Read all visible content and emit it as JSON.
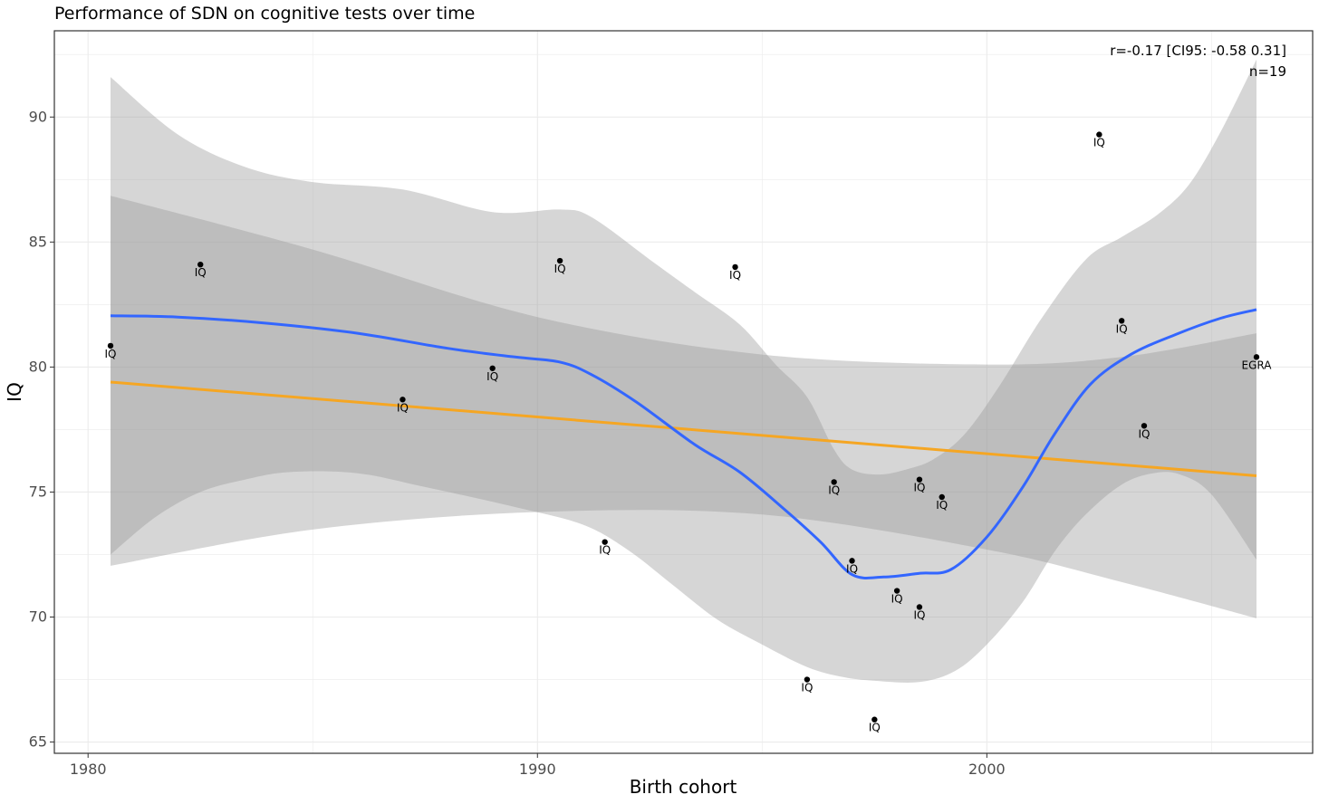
{
  "chart_data": {
    "type": "scatter",
    "title": "Performance of SDN on cognitive tests over time",
    "xlabel": "Birth cohort",
    "ylabel": "IQ",
    "xlim": [
      1979.25,
      2007.25
    ],
    "ylim": [
      64.55,
      93.45
    ],
    "x_ticks": [
      1980,
      1990,
      2000
    ],
    "y_ticks": [
      65,
      70,
      75,
      80,
      85,
      90
    ],
    "grid": true,
    "annotation": {
      "line1": "r=-0.17 [CI95: -0.58 0.31]",
      "line2": "n=19"
    },
    "points": [
      {
        "x": 1980.5,
        "y": 80.85,
        "label": "IQ"
      },
      {
        "x": 1982.5,
        "y": 84.1,
        "label": "IQ"
      },
      {
        "x": 1987.0,
        "y": 78.7,
        "label": "IQ"
      },
      {
        "x": 1989.0,
        "y": 79.95,
        "label": "IQ"
      },
      {
        "x": 1990.5,
        "y": 84.25,
        "label": "IQ"
      },
      {
        "x": 1991.5,
        "y": 73.0,
        "label": "IQ"
      },
      {
        "x": 1994.4,
        "y": 84.0,
        "label": "IQ"
      },
      {
        "x": 1996.0,
        "y": 67.5,
        "label": "IQ"
      },
      {
        "x": 1996.6,
        "y": 75.4,
        "label": "IQ"
      },
      {
        "x": 1997.0,
        "y": 72.25,
        "label": "IQ"
      },
      {
        "x": 1997.5,
        "y": 65.9,
        "label": "IQ"
      },
      {
        "x": 1998.0,
        "y": 71.05,
        "label": "IQ"
      },
      {
        "x": 1998.5,
        "y": 75.5,
        "label": "IQ"
      },
      {
        "x": 1998.5,
        "y": 70.4,
        "label": "IQ"
      },
      {
        "x": 1999.0,
        "y": 74.8,
        "label": "IQ"
      },
      {
        "x": 2002.5,
        "y": 89.3,
        "label": "IQ"
      },
      {
        "x": 2003.0,
        "y": 81.85,
        "label": "IQ"
      },
      {
        "x": 2003.5,
        "y": 77.65,
        "label": "IQ"
      },
      {
        "x": 2006.0,
        "y": 80.4,
        "label": "EGRA"
      }
    ],
    "linear_fit": {
      "color": "#f5a623",
      "x": [
        1980.5,
        2006.0
      ],
      "y": [
        79.4,
        75.65
      ],
      "band_upper": [
        [
          1980.5,
          86.85
        ],
        [
          1985,
          84.7
        ],
        [
          1990,
          82.0
        ],
        [
          1995,
          80.5
        ],
        [
          2000,
          80.1
        ],
        [
          2003,
          80.4
        ],
        [
          2006,
          81.35
        ]
      ],
      "band_lower": [
        [
          1980.5,
          72.05
        ],
        [
          1985,
          73.5
        ],
        [
          1990,
          74.2
        ],
        [
          1995,
          74.1
        ],
        [
          2000,
          72.7
        ],
        [
          2003,
          71.4
        ],
        [
          2006,
          69.95
        ]
      ]
    },
    "smooth_fit": {
      "color": "#3366ff",
      "points": [
        [
          1980.5,
          82.05
        ],
        [
          1982,
          82.0
        ],
        [
          1984,
          81.75
        ],
        [
          1986,
          81.35
        ],
        [
          1988,
          80.75
        ],
        [
          1989.5,
          80.4
        ],
        [
          1990.5,
          80.2
        ],
        [
          1991.2,
          79.7
        ],
        [
          1992.2,
          78.6
        ],
        [
          1993.5,
          76.9
        ],
        [
          1994.5,
          75.8
        ],
        [
          1995.5,
          74.3
        ],
        [
          1996.3,
          73.0
        ],
        [
          1997.0,
          71.7
        ],
        [
          1997.7,
          71.6
        ],
        [
          1998.5,
          71.75
        ],
        [
          1999.2,
          71.9
        ],
        [
          2000.0,
          73.2
        ],
        [
          2000.8,
          75.2
        ],
        [
          2001.5,
          77.3
        ],
        [
          2002.3,
          79.3
        ],
        [
          2003.2,
          80.5
        ],
        [
          2004.2,
          81.3
        ],
        [
          2005.2,
          81.95
        ],
        [
          2006.0,
          82.3
        ]
      ],
      "band_upper": [
        [
          1980.5,
          91.6
        ],
        [
          1982,
          89.3
        ],
        [
          1983.5,
          88.0
        ],
        [
          1985,
          87.4
        ],
        [
          1987,
          87.1
        ],
        [
          1989,
          86.2
        ],
        [
          1990.5,
          86.3
        ],
        [
          1991.2,
          86.0
        ],
        [
          1992.5,
          84.3
        ],
        [
          1993.5,
          83.0
        ],
        [
          1994.5,
          81.7
        ],
        [
          1995.3,
          80.1
        ],
        [
          1996.0,
          78.8
        ],
        [
          1996.6,
          76.7
        ],
        [
          1997.0,
          75.9
        ],
        [
          1997.6,
          75.7
        ],
        [
          1998.2,
          75.9
        ],
        [
          1998.8,
          76.3
        ],
        [
          1999.5,
          77.3
        ],
        [
          2000.3,
          79.3
        ],
        [
          2001.2,
          81.9
        ],
        [
          2002.2,
          84.3
        ],
        [
          2003.0,
          85.2
        ],
        [
          2003.8,
          86.1
        ],
        [
          2004.5,
          87.3
        ],
        [
          2005.2,
          89.4
        ],
        [
          2006.0,
          92.3
        ]
      ],
      "band_lower": [
        [
          1980.5,
          72.5
        ],
        [
          1981.5,
          74.0
        ],
        [
          1982.5,
          75.0
        ],
        [
          1983.5,
          75.5
        ],
        [
          1984.5,
          75.8
        ],
        [
          1986,
          75.75
        ],
        [
          1987.5,
          75.2
        ],
        [
          1989.5,
          74.4
        ],
        [
          1991.0,
          73.7
        ],
        [
          1992.0,
          72.7
        ],
        [
          1993.0,
          71.3
        ],
        [
          1994.0,
          69.9
        ],
        [
          1995.0,
          68.9
        ],
        [
          1996.0,
          68.0
        ],
        [
          1996.8,
          67.6
        ],
        [
          1997.5,
          67.45
        ],
        [
          1998.5,
          67.4
        ],
        [
          1999.3,
          67.85
        ],
        [
          2000.0,
          68.9
        ],
        [
          2000.8,
          70.6
        ],
        [
          2001.5,
          72.6
        ],
        [
          2002.2,
          74.1
        ],
        [
          2003.0,
          75.3
        ],
        [
          2003.7,
          75.75
        ],
        [
          2004.3,
          75.7
        ],
        [
          2005.0,
          74.9
        ],
        [
          2006.0,
          72.3
        ]
      ]
    }
  }
}
